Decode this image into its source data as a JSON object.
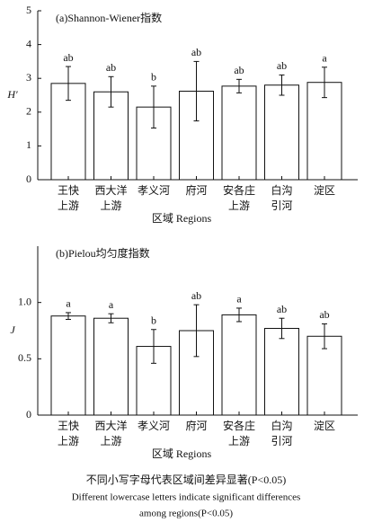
{
  "chart_data": [
    {
      "type": "bar",
      "title": "(a)Shannon-Wiener指数",
      "ylabel": "H′",
      "xlabel": "区域 Regions",
      "categories": [
        [
          "王快",
          "上游"
        ],
        [
          "西大洋",
          "上游"
        ],
        [
          "孝义河"
        ],
        [
          "府河"
        ],
        [
          "安各庄",
          "上游"
        ],
        [
          "白沟",
          "引河"
        ],
        [
          "淀区"
        ]
      ],
      "values": [
        2.85,
        2.6,
        2.15,
        2.62,
        2.77,
        2.8,
        2.88
      ],
      "errors": [
        0.5,
        0.45,
        0.62,
        0.88,
        0.2,
        0.3,
        0.45
      ],
      "sig_letters": [
        "ab",
        "ab",
        "b",
        "ab",
        "ab",
        "ab",
        "a"
      ],
      "color": "#ffffff",
      "ylim": [
        0,
        5
      ],
      "yticks": [
        0,
        1,
        2,
        3,
        4,
        5
      ]
    },
    {
      "type": "bar",
      "title": "(b)Pielou均匀度指数",
      "ylabel": "J",
      "xlabel": "区域 Regions",
      "categories": [
        [
          "王快",
          "上游"
        ],
        [
          "西大洋",
          "上游"
        ],
        [
          "孝义河"
        ],
        [
          "府河"
        ],
        [
          "安各庄",
          "上游"
        ],
        [
          "白沟",
          "引河"
        ],
        [
          "淀区"
        ]
      ],
      "values": [
        0.88,
        0.86,
        0.61,
        0.75,
        0.89,
        0.77,
        0.7
      ],
      "errors": [
        0.03,
        0.04,
        0.15,
        0.23,
        0.06,
        0.09,
        0.11
      ],
      "sig_letters": [
        "a",
        "a",
        "b",
        "ab",
        "a",
        "ab",
        "ab"
      ],
      "color": "#ffffff",
      "ylim": [
        0,
        1.5
      ],
      "yticks": [
        0,
        0.5,
        {
          "value": 1,
          "label": "1.0"
        }
      ]
    }
  ],
  "caption": [
    "不同小写字母代表区域间差异显著(P<0.05)",
    "Different lowercase letters indicate significant differences",
    "among regions(P<0.05)"
  ]
}
